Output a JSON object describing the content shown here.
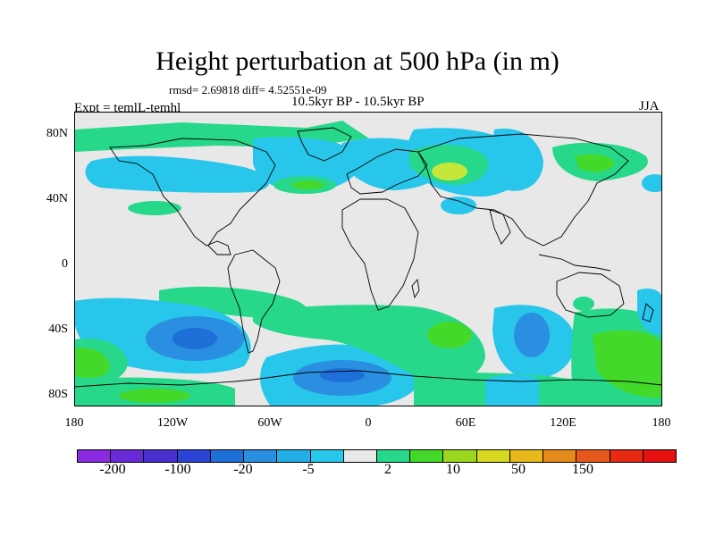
{
  "title": "Height perturbation at 500 hPa (in m)",
  "stats_line": "rmsd= 2.69818 diff= 4.52551e-09",
  "period": "10.5kyr BP - 10.5kyr BP",
  "experiment": "Expt = temlL-temhl",
  "season": "JJA",
  "lat_ticks": [
    "80N",
    "40N",
    "0",
    "40S",
    "80S"
  ],
  "lon_ticks": [
    "180",
    "120W",
    "60W",
    "0",
    "60E",
    "120E",
    "180"
  ],
  "colorbar": {
    "colors": [
      "#8a2be2",
      "#6a2ad8",
      "#4b2ed0",
      "#2a45d6",
      "#1f6fd8",
      "#2a8fe0",
      "#24aee6",
      "#28c6ea",
      "#e8e8e8",
      "#27d88a",
      "#44d82a",
      "#9ad820",
      "#d8d820",
      "#e6b81c",
      "#e68a1c",
      "#e6581c",
      "#e62a14",
      "#e61010"
    ],
    "labels": [
      "-200",
      "-100",
      "-20",
      "-5",
      "2",
      "10",
      "50",
      "150"
    ]
  },
  "map_layers": {
    "background": "#e8e8e8",
    "coastline": "#000000",
    "blue_light": "#28c6ea",
    "blue_mid": "#2a8fe0",
    "blue_dark": "#1f6fd8",
    "green": "#27d88a",
    "green_dark": "#44d82a",
    "yellow_green": "#c6e63a"
  }
}
